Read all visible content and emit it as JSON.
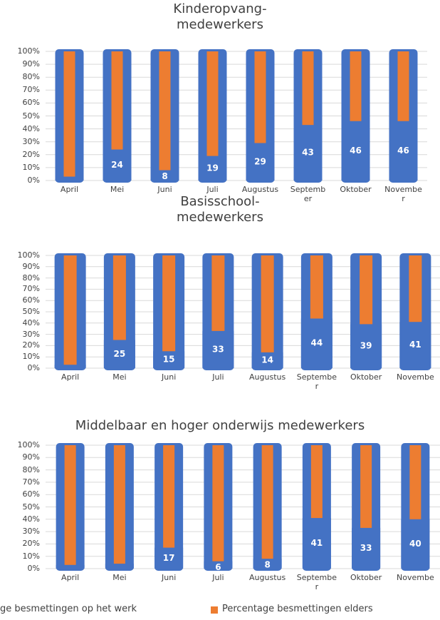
{
  "chart_data": [
    {
      "type": "bar",
      "stacked": true,
      "title": "Kinderopvang-\nmedewerkers",
      "categories": [
        "April",
        "Mei",
        "Juni",
        "Juli",
        "Augustus",
        "Septemb\ner",
        "Oktober",
        "Novembe\nr"
      ],
      "series": [
        {
          "name": "ge besmettingen op het werk",
          "color": "#4472c4",
          "values": [
            3,
            24,
            8,
            19,
            29,
            43,
            46,
            46
          ],
          "value_labels": [
            null,
            "24",
            "8",
            "19",
            "29",
            "43",
            "46",
            "46"
          ]
        },
        {
          "name": "Percentage besmettingen elders",
          "color": "#ed7d31",
          "values": [
            97,
            76,
            92,
            81,
            71,
            57,
            54,
            54
          ]
        }
      ],
      "ylim": [
        0,
        100
      ],
      "yticks": [
        {
          "value": 0,
          "label": "0%"
        },
        {
          "value": 10,
          "label": "10%"
        },
        {
          "value": 20,
          "label": "20%"
        },
        {
          "value": 30,
          "label": "30%"
        },
        {
          "value": 40,
          "label": "40%"
        },
        {
          "value": 50,
          "label": "50%"
        },
        {
          "value": 60,
          "label": "60%"
        },
        {
          "value": 70,
          "label": "70%"
        },
        {
          "value": 80,
          "label": "80%"
        },
        {
          "value": 90,
          "label": "90%"
        },
        {
          "value": 100,
          "label": "100%"
        }
      ],
      "grid": true
    },
    {
      "type": "bar",
      "stacked": true,
      "title": "Basisschool-\nmedewerkers",
      "categories": [
        "April",
        "Mei",
        "Juni",
        "Juli",
        "Augustus",
        "Septembe\nr",
        "Oktober",
        "Novembe"
      ],
      "series": [
        {
          "name": "ge besmettingen op het werk",
          "color": "#4472c4",
          "values": [
            3,
            25,
            15,
            33,
            14,
            44,
            39,
            41
          ],
          "value_labels": [
            null,
            "25",
            "15",
            "33",
            "14",
            "44",
            "39",
            "41"
          ]
        },
        {
          "name": "Percentage besmettingen elders",
          "color": "#ed7d31",
          "values": [
            97,
            75,
            85,
            67,
            86,
            56,
            61,
            59
          ]
        }
      ],
      "ylim": [
        0,
        100
      ],
      "yticks": [
        {
          "value": 0,
          "label": "0%"
        },
        {
          "value": 10,
          "label": "10%"
        },
        {
          "value": 20,
          "label": "20%"
        },
        {
          "value": 30,
          "label": "30%"
        },
        {
          "value": 40,
          "label": "40%"
        },
        {
          "value": 50,
          "label": "50%"
        },
        {
          "value": 60,
          "label": "60%"
        },
        {
          "value": 70,
          "label": "70%"
        },
        {
          "value": 80,
          "label": "80%"
        },
        {
          "value": 90,
          "label": "90%"
        },
        {
          "value": 100,
          "label": "100%"
        }
      ],
      "grid": true
    },
    {
      "type": "bar",
      "stacked": true,
      "title": "Middelbaar  en  hoger  onderwijs  medewerkers",
      "categories": [
        "April",
        "Mei",
        "Juni",
        "Juli",
        "Augustus",
        "Septembe\nr",
        "Oktober",
        "Novembe"
      ],
      "series": [
        {
          "name": "ge besmettingen op het werk",
          "color": "#4472c4",
          "values": [
            3,
            4,
            17,
            6,
            8,
            41,
            33,
            40
          ],
          "value_labels": [
            null,
            null,
            "17",
            "6",
            "8",
            "41",
            "33",
            "40"
          ]
        },
        {
          "name": "Percentage besmettingen elders",
          "color": "#ed7d31",
          "values": [
            97,
            96,
            83,
            94,
            92,
            59,
            67,
            60
          ]
        }
      ],
      "ylim": [
        0,
        100
      ],
      "yticks": [
        {
          "value": 0,
          "label": "0%"
        },
        {
          "value": 10,
          "label": "10%"
        },
        {
          "value": 20,
          "label": "20%"
        },
        {
          "value": 30,
          "label": "30%"
        },
        {
          "value": 40,
          "label": "40%"
        },
        {
          "value": 50,
          "label": "50%"
        },
        {
          "value": 60,
          "label": "60%"
        },
        {
          "value": 70,
          "label": "70%"
        },
        {
          "value": 80,
          "label": "80%"
        },
        {
          "value": 90,
          "label": "90%"
        },
        {
          "value": 100,
          "label": "100%"
        }
      ],
      "grid": true
    }
  ]
}
